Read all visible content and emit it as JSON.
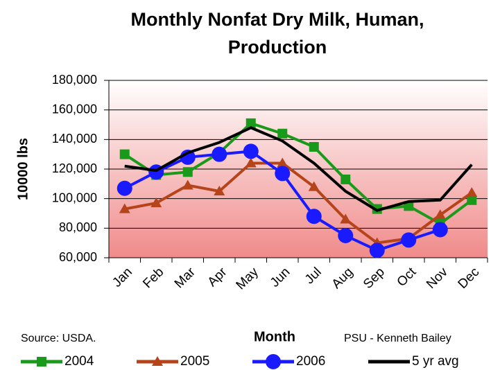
{
  "chart_data": {
    "type": "line",
    "title": [
      "Monthly Nonfat Dry Milk, Human,",
      "Production"
    ],
    "xlabel": "Month",
    "ylabel": "10000 lbs",
    "annotations": [
      "Source: USDA.",
      "PSU - Kenneth Bailey"
    ],
    "categories": [
      "Jan",
      "Feb",
      "Mar",
      "Apr",
      "May",
      "Jun",
      "Jul",
      "Aug",
      "Sep",
      "Oct",
      "Nov",
      "Dec"
    ],
    "series": [
      {
        "name": "2004",
        "color": "#1a9a1a",
        "marker": "square",
        "values": [
          130000,
          116000,
          118000,
          131000,
          151000,
          144000,
          135000,
          113000,
          93000,
          95000,
          83000,
          99000
        ]
      },
      {
        "name": "2005",
        "color": "#b5441a",
        "marker": "triangle",
        "values": [
          93000,
          97000,
          109000,
          105000,
          124000,
          124000,
          108000,
          86000,
          70000,
          73000,
          89000,
          104000
        ]
      },
      {
        "name": "2006",
        "color": "#1a1aff",
        "marker": "circle",
        "values": [
          107000,
          118000,
          128000,
          130000,
          132000,
          117000,
          88000,
          75000,
          65000,
          72000,
          79000,
          null
        ]
      },
      {
        "name": "5 yr avg",
        "color": "#000000",
        "marker": "none",
        "values": [
          122000,
          119000,
          131000,
          138000,
          148000,
          139000,
          124000,
          105000,
          92000,
          98000,
          99000,
          123000
        ]
      }
    ],
    "ylim": [
      60000,
      180000
    ],
    "yticks": [
      {
        "value": 60000,
        "label": "60,000"
      },
      {
        "value": 80000,
        "label": "80,000"
      },
      {
        "value": 100000,
        "label": "100,000"
      },
      {
        "value": 120000,
        "label": "120,000"
      },
      {
        "value": 140000,
        "label": "140,000"
      },
      {
        "value": 160000,
        "label": "160,000"
      },
      {
        "value": 180000,
        "label": "180,000"
      }
    ],
    "grid": true
  }
}
